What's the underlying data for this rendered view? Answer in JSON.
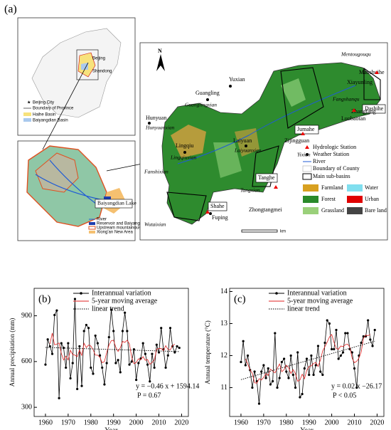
{
  "map": {
    "panel": "(a)",
    "china_labels": [
      "Beijing City",
      "Boundary of Province",
      "Haihe Basin",
      "Baiyangdian Basin",
      "Beijing",
      "Shandong"
    ],
    "basin_labels": [
      "Baiyangdian Lake",
      "River",
      "Reservoir and Baiyangdian Lake",
      "Upstream mountainous area",
      "Xiong'an New Area"
    ],
    "places": [
      "Mentougouqu",
      "Manshuihe",
      "Xiayunling",
      "Dashihe",
      "Zhangfang",
      "Luobaotan",
      "Fangshanqu",
      "Yuxian",
      "Guangling",
      "Guanglingxian",
      "Hunyuan",
      "Hunyuanxian",
      "Lingqiu",
      "Lingqiuxian",
      "Laiyuan",
      "Laiyuanxian",
      "Zijingguan",
      "Jumahe",
      "Yixian",
      "Fanshixian",
      "Tanghe",
      "Tangxian",
      "Zhongtangmei",
      "Shahe",
      "Fuping",
      "Wutaixian"
    ],
    "legend": [
      "Hydrologic Station",
      "Weather Station",
      "River",
      "Boundary of County",
      "Main sub-basins",
      "Farmland",
      "Water",
      "Forest",
      "Urban",
      "Grassland",
      "Bare land"
    ],
    "north": "N",
    "scale": "km"
  },
  "chart_data": [
    {
      "type": "line",
      "panel": "(b)",
      "xlabel": "Year",
      "ylabel": "Annual precipitation (mm)",
      "x": [
        1960,
        1961,
        1962,
        1963,
        1964,
        1965,
        1966,
        1967,
        1968,
        1969,
        1970,
        1971,
        1972,
        1973,
        1974,
        1975,
        1976,
        1977,
        1978,
        1979,
        1980,
        1981,
        1982,
        1983,
        1984,
        1985,
        1986,
        1987,
        1988,
        1989,
        1990,
        1991,
        1992,
        1993,
        1994,
        1995,
        1996,
        1997,
        1998,
        1999,
        2000,
        2001,
        2002,
        2003,
        2004,
        2005,
        2006,
        2007,
        2008,
        2009,
        2010,
        2011,
        2012,
        2013,
        2014,
        2015,
        2016,
        2017,
        2018,
        2019
      ],
      "xlim": [
        1955,
        2023
      ],
      "xticks": [
        1960,
        1970,
        1980,
        1990,
        2000,
        2010,
        2020
      ],
      "ylim": [
        240,
        1080
      ],
      "yticks": [
        300,
        600,
        900
      ],
      "legend": "upper left",
      "series": [
        {
          "name": "Interannual variation",
          "color": "#000000",
          "marker": "circle",
          "values": [
            580,
            745,
            700,
            650,
            905,
            935,
            360,
            720,
            690,
            560,
            720,
            490,
            590,
            1010,
            420,
            700,
            440,
            800,
            840,
            820,
            560,
            520,
            770,
            720,
            640,
            560,
            450,
            590,
            760,
            940,
            800,
            590,
            610,
            530,
            800,
            920,
            800,
            580,
            600,
            680,
            480,
            590,
            620,
            720,
            650,
            580,
            470,
            650,
            560,
            710,
            660,
            820,
            680,
            560,
            640,
            820,
            700,
            660,
            700,
            690
          ]
        },
        {
          "name": "5-year moving average",
          "color": "#e02020",
          "values": [
            null,
            null,
            716,
            787,
            710,
            714,
            722,
            653,
            610,
            636,
            610,
            674,
            646,
            642,
            632,
            674,
            640,
            720,
            692,
            708,
            702,
            678,
            642,
            642,
            628,
            592,
            600,
            660,
            708,
            736,
            740,
            694,
            666,
            690,
            732,
            726,
            740,
            716,
            628,
            586,
            594,
            618,
            612,
            632,
            608,
            614,
            582,
            594,
            610,
            680,
            686,
            686,
            672,
            704,
            680,
            676,
            704,
            714,
            null,
            null
          ]
        },
        {
          "name": "linear trend",
          "color": "#000000",
          "dash": "dotted",
          "x": [
            1960,
            2019
          ],
          "values": [
            692.54,
            665.4
          ]
        }
      ],
      "annotations": [
        "y = −0.46 x + 1594.14",
        "P = 0.67"
      ]
    },
    {
      "type": "line",
      "panel": "(c)",
      "xlabel": "Year",
      "ylabel": "Annual temperature (°C)",
      "x": [
        1960,
        1961,
        1962,
        1963,
        1964,
        1965,
        1966,
        1967,
        1968,
        1969,
        1970,
        1971,
        1972,
        1973,
        1974,
        1975,
        1976,
        1977,
        1978,
        1979,
        1980,
        1981,
        1982,
        1983,
        1984,
        1985,
        1986,
        1987,
        1988,
        1989,
        1990,
        1991,
        1992,
        1993,
        1994,
        1995,
        1996,
        1997,
        1998,
        1999,
        2000,
        2001,
        2002,
        2003,
        2004,
        2005,
        2006,
        2007,
        2008,
        2009,
        2010,
        2011,
        2012,
        2013,
        2014,
        2015,
        2016,
        2017,
        2018,
        2019
      ],
      "xlim": [
        1955,
        2023
      ],
      "xticks": [
        1960,
        1970,
        1980,
        1990,
        2000,
        2010,
        2020
      ],
      "ylim": [
        10.1,
        14.1
      ],
      "yticks": [
        11,
        12,
        13,
        14
      ],
      "legend": "upper left",
      "series": [
        {
          "name": "Interannual variation",
          "color": "#000000",
          "marker": "circle",
          "values": [
            11.8,
            12.45,
            11.7,
            12.0,
            11.55,
            11.0,
            11.5,
            11.2,
            10.5,
            11.5,
            11.7,
            11.3,
            11.6,
            11.1,
            11.2,
            12.7,
            11.0,
            11.3,
            11.8,
            11.9,
            11.5,
            11.3,
            12.0,
            11.4,
            11.0,
            12.1,
            10.7,
            10.8,
            11.6,
            11.9,
            11.4,
            12.0,
            11.4,
            11.7,
            12.3,
            11.5,
            11.4,
            12.4,
            13.1,
            13.0,
            12.2,
            12.2,
            12.8,
            11.9,
            12.0,
            12.1,
            12.7,
            12.7,
            12.2,
            12.1,
            11.6,
            11.0,
            12.0,
            12.4,
            12.6,
            12.6,
            13.1,
            12.5,
            12.3,
            12.8
          ]
        },
        {
          "name": "5-year moving average",
          "color": "#e02020",
          "values": [
            null,
            null,
            11.9,
            11.74,
            11.55,
            11.45,
            11.15,
            11.14,
            11.28,
            11.24,
            11.32,
            11.44,
            11.38,
            11.58,
            11.52,
            11.46,
            11.6,
            11.74,
            11.5,
            11.56,
            11.7,
            11.62,
            11.44,
            11.56,
            11.44,
            11.2,
            11.24,
            11.42,
            11.28,
            11.54,
            11.66,
            11.68,
            11.76,
            11.78,
            11.66,
            11.86,
            12.14,
            12.28,
            12.42,
            12.58,
            12.66,
            12.42,
            12.22,
            12.2,
            12.3,
            12.28,
            12.34,
            12.36,
            12.26,
            11.92,
            11.78,
            11.82,
            11.92,
            12.12,
            12.54,
            12.64,
            12.62,
            12.66,
            null,
            null
          ]
        },
        {
          "name": "linear trend",
          "color": "#000000",
          "dash": "dotted",
          "x": [
            1960,
            2019
          ],
          "values": [
            11.25,
            12.45
          ]
        }
      ],
      "annotations": [
        "y = 0.02 x −26.17",
        "P < 0.05"
      ]
    }
  ]
}
